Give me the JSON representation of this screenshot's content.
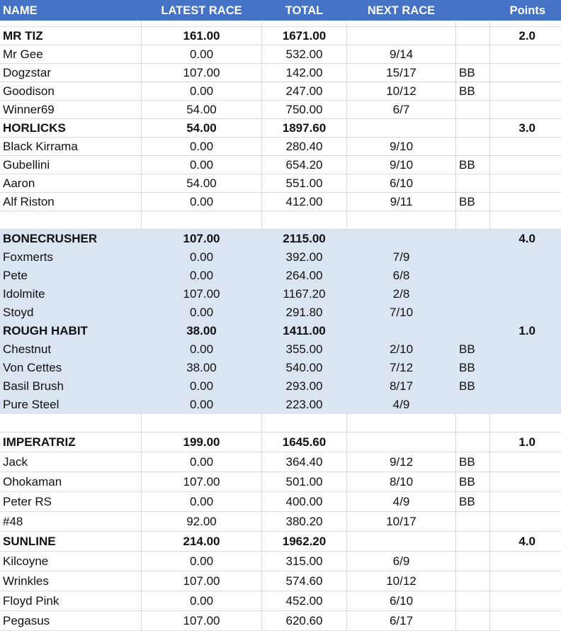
{
  "header": {
    "name": "NAME",
    "latest": "LATEST RACE",
    "total": "TOTAL",
    "next": "NEXT RACE",
    "bb": "",
    "points": "Points"
  },
  "groups": [
    {
      "shaded": false,
      "teams": [
        {
          "name": "MR TIZ",
          "latest": "161.00",
          "total": "1671.00",
          "points": "2.0",
          "runners": [
            {
              "name": "Mr Gee",
              "latest": "0.00",
              "total": "532.00",
              "next": "9/14",
              "bb": ""
            },
            {
              "name": "Dogzstar",
              "latest": "107.00",
              "total": "142.00",
              "next": "15/17",
              "bb": "BB"
            },
            {
              "name": "Goodison",
              "latest": "0.00",
              "total": "247.00",
              "next": "10/12",
              "bb": "BB"
            },
            {
              "name": "Winner69",
              "latest": "54.00",
              "total": "750.00",
              "next": "6/7",
              "bb": ""
            }
          ]
        },
        {
          "name": "HORLICKS",
          "latest": "54.00",
          "total": "1897.60",
          "points": "3.0",
          "runners": [
            {
              "name": "Black Kirrama",
              "latest": "0.00",
              "total": "280.40",
              "next": "9/10",
              "bb": ""
            },
            {
              "name": "Gubellini",
              "latest": "0.00",
              "total": "654.20",
              "next": "9/10",
              "bb": "BB"
            },
            {
              "name": "Aaron",
              "latest": "54.00",
              "total": "551.00",
              "next": "6/10",
              "bb": ""
            },
            {
              "name": "Alf Riston",
              "latest": "0.00",
              "total": "412.00",
              "next": "9/11",
              "bb": "BB"
            }
          ]
        }
      ]
    },
    {
      "shaded": true,
      "teams": [
        {
          "name": "BONECRUSHER",
          "latest": "107.00",
          "total": "2115.00",
          "points": "4.0",
          "runners": [
            {
              "name": "Foxmerts",
              "latest": "0.00",
              "total": "392.00",
              "next": "7/9",
              "bb": ""
            },
            {
              "name": "Pete",
              "latest": "0.00",
              "total": "264.00",
              "next": "6/8",
              "bb": ""
            },
            {
              "name": "Idolmite",
              "latest": "107.00",
              "total": "1167.20",
              "next": "2/8",
              "bb": ""
            },
            {
              "name": "Stoyd",
              "latest": "0.00",
              "total": "291.80",
              "next": "7/10",
              "bb": ""
            }
          ]
        },
        {
          "name": "ROUGH HABIT",
          "latest": "38.00",
          "total": "1411.00",
          "points": "1.0",
          "runners": [
            {
              "name": "Chestnut",
              "latest": "0.00",
              "total": "355.00",
              "next": "2/10",
              "bb": "BB"
            },
            {
              "name": "Von Cettes",
              "latest": "38.00",
              "total": "540.00",
              "next": "7/12",
              "bb": "BB"
            },
            {
              "name": "Basil Brush",
              "latest": "0.00",
              "total": "293.00",
              "next": "8/17",
              "bb": "BB"
            },
            {
              "name": "Pure Steel",
              "latest": "0.00",
              "total": "223.00",
              "next": "4/9",
              "bb": ""
            }
          ]
        }
      ]
    },
    {
      "shaded": false,
      "teams": [
        {
          "name": "IMPERATRIZ",
          "latest": "199.00",
          "total": "1645.60",
          "points": "1.0",
          "runners": [
            {
              "name": "Jack",
              "latest": "0.00",
              "total": "364.40",
              "next": "9/12",
              "bb": "BB"
            },
            {
              "name": "Ohokaman",
              "latest": "107.00",
              "total": "501.00",
              "next": "8/10",
              "bb": "BB"
            },
            {
              "name": "Peter RS",
              "latest": "0.00",
              "total": "400.00",
              "next": "4/9",
              "bb": "BB"
            },
            {
              "name": "#48",
              "latest": "92.00",
              "total": "380.20",
              "next": "10/17",
              "bb": ""
            }
          ]
        },
        {
          "name": "SUNLINE",
          "latest": "214.00",
          "total": "1962.20",
          "points": "4.0",
          "runners": [
            {
              "name": "Kilcoyne",
              "latest": "0.00",
              "total": "315.00",
              "next": "6/9",
              "bb": ""
            },
            {
              "name": "Wrinkles",
              "latest": "107.00",
              "total": "574.60",
              "next": "10/12",
              "bb": ""
            },
            {
              "name": "Floyd Pink",
              "latest": "0.00",
              "total": "452.00",
              "next": "6/10",
              "bb": ""
            },
            {
              "name": "Pegasus",
              "latest": "107.00",
              "total": "620.60",
              "next": "6/17",
              "bb": ""
            }
          ]
        }
      ]
    }
  ]
}
